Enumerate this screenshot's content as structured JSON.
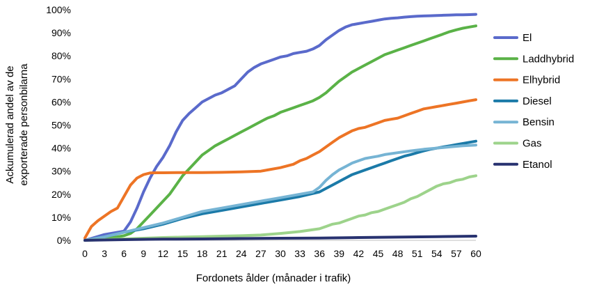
{
  "chart_data": {
    "type": "line",
    "xlabel": "Fordonets ålder (månader i trafik)",
    "ylabel": [
      "Ackumulerad andel av de",
      "exporterade personbilarna"
    ],
    "xlim": [
      0,
      60
    ],
    "ylim": [
      0,
      100
    ],
    "x_ticks": [
      "0",
      "3",
      "6",
      "9",
      "12",
      "15",
      "18",
      "21",
      "24",
      "27",
      "30",
      "33",
      "36",
      "39",
      "42",
      "45",
      "48",
      "51",
      "54",
      "57",
      "60"
    ],
    "y_ticks": [
      "0%",
      "10%",
      "20%",
      "30%",
      "40%",
      "50%",
      "60%",
      "70%",
      "80%",
      "90%",
      "100%"
    ],
    "grid": false,
    "legend_position": "right",
    "series": [
      {
        "name": "El",
        "color": "#5a6acb",
        "x": [
          0,
          3,
          6,
          7,
          8,
          9,
          10,
          11,
          12,
          13,
          14,
          15,
          16,
          17,
          18,
          19,
          20,
          21,
          22,
          23,
          24,
          25,
          26,
          27,
          28,
          29,
          30,
          31,
          32,
          33,
          34,
          35,
          36,
          37,
          38,
          39,
          40,
          41,
          42,
          43,
          44,
          45,
          46,
          47,
          48,
          49,
          50,
          51,
          52,
          53,
          54,
          55,
          56,
          57,
          58,
          59,
          60
        ],
        "y": [
          0,
          2.5,
          4,
          8,
          14,
          21,
          27,
          32,
          36,
          41,
          47,
          52,
          55,
          57.5,
          60,
          61.5,
          63,
          64,
          65.5,
          67,
          70,
          73,
          75,
          76.5,
          77.5,
          78.5,
          79.5,
          80,
          81,
          81.5,
          82,
          83,
          84.5,
          87,
          89,
          91,
          92.5,
          93.5,
          94,
          94.5,
          95,
          95.5,
          96,
          96.3,
          96.5,
          96.8,
          97,
          97.2,
          97.3,
          97.4,
          97.5,
          97.6,
          97.7,
          97.8,
          97.8,
          97.9,
          98
        ]
      },
      {
        "name": "Laddhybrid",
        "color": "#5ab247",
        "x": [
          0,
          3,
          6,
          7,
          8,
          9,
          10,
          11,
          12,
          13,
          14,
          15,
          16,
          17,
          18,
          19,
          20,
          21,
          22,
          23,
          24,
          25,
          26,
          27,
          28,
          29,
          30,
          31,
          32,
          33,
          34,
          35,
          36,
          37,
          38,
          39,
          40,
          41,
          42,
          43,
          44,
          45,
          46,
          47,
          48,
          49,
          50,
          51,
          52,
          53,
          54,
          55,
          56,
          57,
          58,
          59,
          60
        ],
        "y": [
          0,
          0.5,
          2,
          3,
          5,
          8,
          11,
          14,
          17,
          20,
          24,
          28,
          31,
          34,
          37,
          39,
          41,
          42.5,
          44,
          45.5,
          47,
          48.5,
          50,
          51.5,
          53,
          54,
          55.5,
          56.5,
          57.5,
          58.5,
          59.5,
          60.5,
          62,
          64,
          66.5,
          69,
          71,
          73,
          74.5,
          76,
          77.5,
          79,
          80.5,
          81.5,
          82.5,
          83.5,
          84.5,
          85.5,
          86.5,
          87.5,
          88.5,
          89.5,
          90.5,
          91.3,
          92,
          92.5,
          93
        ]
      },
      {
        "name": "Elhybrid",
        "color": "#ed7425",
        "x": [
          0,
          1,
          2,
          3,
          4,
          5,
          6,
          7,
          8,
          9,
          10,
          11,
          12,
          15,
          18,
          21,
          24,
          27,
          28,
          30,
          32,
          33,
          34,
          35,
          36,
          37,
          38,
          39,
          40,
          41,
          42,
          43,
          44,
          45,
          46,
          47,
          48,
          49,
          50,
          51,
          52,
          53,
          54,
          55,
          56,
          57,
          58,
          59,
          60
        ],
        "y": [
          1,
          6,
          8.5,
          10.5,
          12.5,
          14,
          19,
          24,
          27,
          28.5,
          29.2,
          29.3,
          29.3,
          29.4,
          29.4,
          29.5,
          29.7,
          30,
          30.5,
          31.5,
          33,
          34.5,
          35.5,
          37,
          38.5,
          40.5,
          42.5,
          44.5,
          46,
          47.5,
          48.5,
          49,
          50,
          51,
          52,
          52.5,
          53,
          54,
          55,
          56,
          57,
          57.5,
          58,
          58.5,
          59,
          59.5,
          60,
          60.5,
          61
        ]
      },
      {
        "name": "Diesel",
        "color": "#1b7aa8",
        "x": [
          0,
          3,
          6,
          9,
          12,
          15,
          18,
          21,
          24,
          27,
          30,
          33,
          36,
          37,
          38,
          39,
          40,
          41,
          42,
          43,
          44,
          45,
          46,
          47,
          48,
          49,
          50,
          51,
          52,
          53,
          54,
          55,
          56,
          57,
          58,
          59,
          60
        ],
        "y": [
          0,
          1.5,
          3.5,
          5,
          7,
          9.5,
          11.5,
          13,
          14.5,
          16,
          17.5,
          19,
          21,
          22.5,
          24,
          25.5,
          27,
          28.5,
          29.5,
          30.5,
          31.5,
          32.5,
          33.5,
          34.5,
          35.5,
          36.5,
          37.2,
          38,
          38.8,
          39.5,
          40,
          40.5,
          41,
          41.5,
          42,
          42.5,
          43
        ]
      },
      {
        "name": "Bensin",
        "color": "#76b4d4",
        "x": [
          0,
          3,
          6,
          9,
          12,
          15,
          18,
          21,
          24,
          27,
          30,
          33,
          35,
          36,
          37,
          38,
          39,
          40,
          41,
          42,
          43,
          44,
          45,
          46,
          48,
          50,
          52,
          54,
          56,
          58,
          60
        ],
        "y": [
          0,
          1.5,
          3.5,
          5.5,
          7.5,
          10,
          12.5,
          14,
          15.5,
          17,
          18.5,
          20,
          21,
          23,
          26,
          28.5,
          30.5,
          32,
          33.5,
          34.5,
          35.5,
          36,
          36.5,
          37.2,
          38,
          38.8,
          39.5,
          40,
          40.5,
          41,
          41.3
        ]
      },
      {
        "name": "Gas",
        "color": "#9dd38b",
        "x": [
          0,
          3,
          6,
          9,
          12,
          15,
          18,
          21,
          24,
          27,
          30,
          33,
          36,
          37,
          38,
          39,
          40,
          41,
          42,
          43,
          44,
          45,
          46,
          47,
          48,
          49,
          50,
          51,
          52,
          53,
          54,
          55,
          56,
          57,
          58,
          59,
          60
        ],
        "y": [
          0,
          0.3,
          0.6,
          0.9,
          1.2,
          1.4,
          1.6,
          1.8,
          2,
          2.3,
          3,
          3.8,
          5,
          6,
          7,
          7.5,
          8.5,
          9.5,
          10.5,
          11,
          12,
          12.5,
          13.5,
          14.5,
          15.5,
          16.5,
          18,
          19,
          20.5,
          22,
          23.5,
          24.5,
          25,
          26,
          26.5,
          27.5,
          28
        ]
      },
      {
        "name": "Etanol",
        "color": "#283270",
        "x": [
          0,
          6,
          12,
          18,
          24,
          30,
          36,
          42,
          48,
          54,
          57,
          60
        ],
        "y": [
          0,
          0.3,
          0.5,
          0.6,
          0.8,
          0.9,
          1,
          1.2,
          1.4,
          1.6,
          1.7,
          1.8
        ]
      }
    ]
  }
}
